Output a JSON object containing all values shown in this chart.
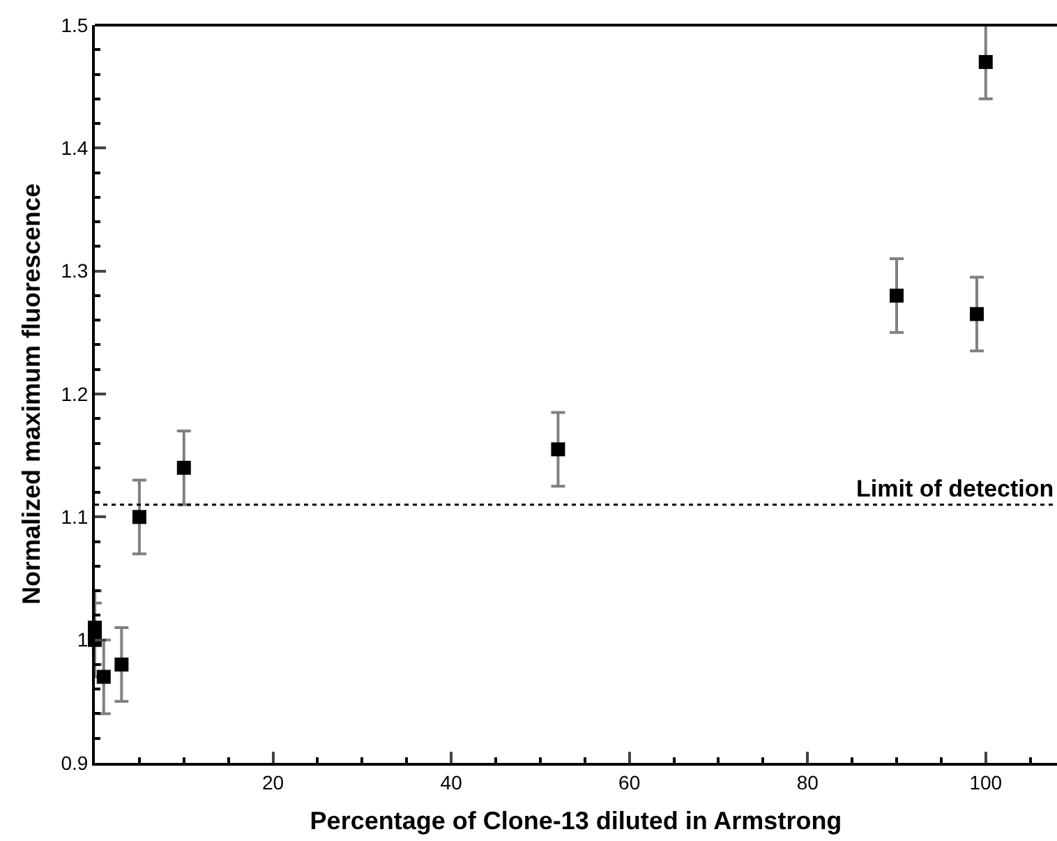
{
  "chart_data": {
    "type": "scatter",
    "xlabel": "Percentage of Clone-13 diluted in Armstrong",
    "ylabel": "Normalized maximum fluorescence",
    "x": [
      0,
      0,
      1,
      3,
      5,
      10,
      52,
      90,
      99,
      100
    ],
    "series": [
      {
        "color": "#000000",
        "values": [
          1.01,
          1.0,
          0.97,
          0.98,
          1.1,
          1.14,
          1.155,
          1.28,
          1.265,
          1.47
        ],
        "errors": [
          0.03,
          0.03,
          0.03,
          0.03,
          0.03,
          0.03,
          0.03,
          0.03,
          0.03,
          0.03
        ]
      }
    ],
    "marker": "square",
    "xlim": [
      0,
      108
    ],
    "xticks": [
      20,
      40,
      60,
      80,
      100
    ],
    "ylim": [
      0.9,
      1.5
    ],
    "yticks": [
      0.9,
      1,
      1.1,
      1.2,
      1.3,
      1.4,
      1.5
    ],
    "ref_lines": [
      {
        "axis": "y",
        "value": 1.11,
        "label": "Limit of detection",
        "color": "#000000",
        "line_style": "dotted"
      }
    ],
    "grid": false
  }
}
